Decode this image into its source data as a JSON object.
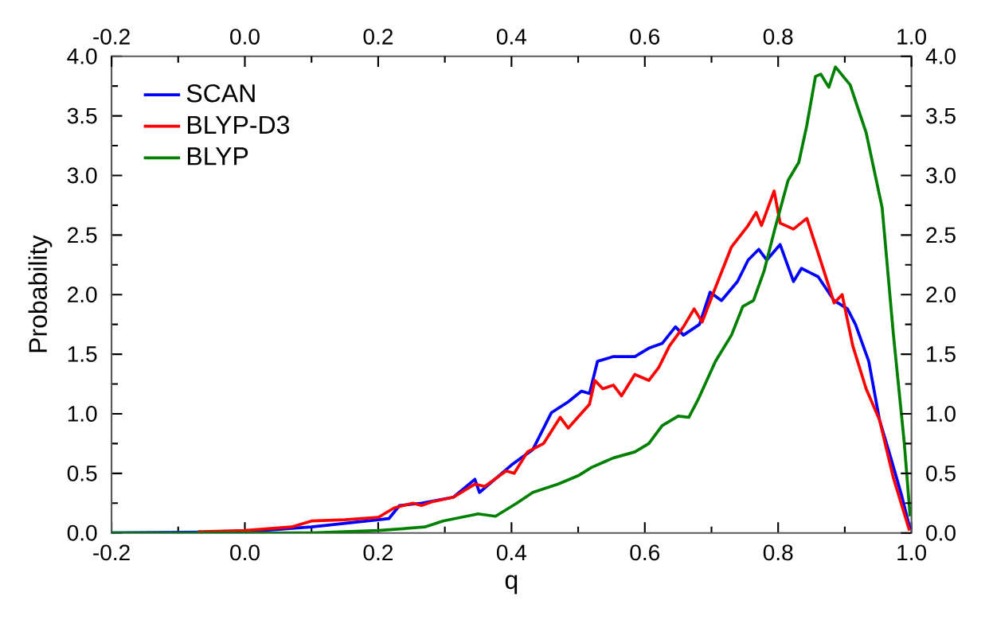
{
  "chart_data": {
    "type": "line",
    "xlabel": "q",
    "ylabel": "Probability",
    "legend": "top left",
    "line_style": "solid",
    "marker": "none",
    "xlim": [
      -0.2,
      1.0
    ],
    "ylim": [
      0,
      4.0
    ],
    "x2lim": [
      -0.2,
      1.0
    ],
    "y2lim": [
      0,
      4.0
    ],
    "xticks": [
      {
        "value": -0.2,
        "label": "-0.2"
      },
      {
        "value": 0,
        "label": "0.0"
      },
      {
        "value": 0.2,
        "label": "0.2"
      },
      {
        "value": 0.4,
        "label": "0.4"
      },
      {
        "value": 0.6,
        "label": "0.6"
      },
      {
        "value": 0.8,
        "label": "0.8"
      },
      {
        "value": 1.0,
        "label": "1.0"
      }
    ],
    "x2ticks": [
      {
        "value": -0.2,
        "label": "-0.2"
      },
      {
        "value": 0,
        "label": "0.0"
      },
      {
        "value": 0.2,
        "label": "0.2"
      },
      {
        "value": 0.4,
        "label": "0.4"
      },
      {
        "value": 0.6,
        "label": "0.6"
      },
      {
        "value": 0.8,
        "label": "0.8"
      },
      {
        "value": 1.0,
        "label": "1.0"
      }
    ],
    "yticks": [
      {
        "value": 0,
        "label": "0.0"
      },
      {
        "value": 0.5,
        "label": "0.5"
      },
      {
        "value": 1.0,
        "label": "1.0"
      },
      {
        "value": 1.5,
        "label": "1.5"
      },
      {
        "value": 2.0,
        "label": "2.0"
      },
      {
        "value": 2.5,
        "label": "2.5"
      },
      {
        "value": 3.0,
        "label": "3.0"
      },
      {
        "value": 3.5,
        "label": "3.5"
      },
      {
        "value": 4.0,
        "label": "4.0"
      }
    ],
    "y2ticks": [
      {
        "value": 0,
        "label": "0.0"
      },
      {
        "value": 0.5,
        "label": "0.5"
      },
      {
        "value": 1.0,
        "label": "1.0"
      },
      {
        "value": 1.5,
        "label": "1.5"
      },
      {
        "value": 2.0,
        "label": "2.0"
      },
      {
        "value": 2.5,
        "label": "2.5"
      },
      {
        "value": 3.0,
        "label": "3.0"
      },
      {
        "value": 3.5,
        "label": "3.5"
      },
      {
        "value": 4.0,
        "label": "4.0"
      }
    ],
    "series": [
      {
        "name": "SCAN",
        "color": "#0000ff",
        "x": [
          -0.2,
          0.0,
          0.1,
          0.2,
          0.216,
          0.232,
          0.265,
          0.313,
          0.345,
          0.352,
          0.4,
          0.432,
          0.46,
          0.485,
          0.505,
          0.517,
          0.529,
          0.553,
          0.585,
          0.606,
          0.626,
          0.646,
          0.658,
          0.682,
          0.698,
          0.715,
          0.739,
          0.755,
          0.771,
          0.783,
          0.803,
          0.823,
          0.835,
          0.86,
          0.884,
          0.904,
          0.916,
          0.936,
          0.952,
          0.969,
          0.985,
          0.998
        ],
        "values": [
          0,
          0.01,
          0.05,
          0.11,
          0.12,
          0.23,
          0.25,
          0.3,
          0.45,
          0.34,
          0.57,
          0.7,
          1.01,
          1.1,
          1.19,
          1.17,
          1.44,
          1.48,
          1.48,
          1.55,
          1.59,
          1.73,
          1.66,
          1.75,
          2.02,
          1.95,
          2.11,
          2.29,
          2.38,
          2.29,
          2.42,
          2.11,
          2.22,
          2.15,
          1.95,
          1.88,
          1.75,
          1.44,
          0.95,
          0.63,
          0.32,
          0.03
        ]
      },
      {
        "name": "BLYP-D3",
        "color": "#ff0000",
        "x": [
          -0.07,
          0.0,
          0.07,
          0.1,
          0.15,
          0.2,
          0.224,
          0.252,
          0.265,
          0.28,
          0.313,
          0.345,
          0.36,
          0.392,
          0.404,
          0.424,
          0.448,
          0.473,
          0.485,
          0.517,
          0.525,
          0.537,
          0.553,
          0.565,
          0.585,
          0.606,
          0.621,
          0.637,
          0.658,
          0.674,
          0.686,
          0.706,
          0.73,
          0.755,
          0.767,
          0.775,
          0.794,
          0.803,
          0.823,
          0.843,
          0.86,
          0.884,
          0.896,
          0.912,
          0.932,
          0.952,
          0.973,
          0.997
        ],
        "values": [
          0.01,
          0.02,
          0.05,
          0.1,
          0.11,
          0.13,
          0.21,
          0.25,
          0.23,
          0.26,
          0.3,
          0.41,
          0.39,
          0.52,
          0.5,
          0.68,
          0.75,
          0.97,
          0.88,
          1.08,
          1.28,
          1.21,
          1.24,
          1.15,
          1.33,
          1.28,
          1.39,
          1.57,
          1.73,
          1.88,
          1.77,
          2.06,
          2.4,
          2.58,
          2.69,
          2.58,
          2.87,
          2.6,
          2.55,
          2.64,
          2.35,
          1.93,
          2.0,
          1.57,
          1.21,
          0.95,
          0.46,
          0.02
        ]
      },
      {
        "name": "BLYP",
        "color": "#008000",
        "x": [
          -0.2,
          0.1,
          0.2,
          0.27,
          0.297,
          0.35,
          0.376,
          0.408,
          0.432,
          0.47,
          0.5,
          0.52,
          0.553,
          0.585,
          0.606,
          0.626,
          0.65,
          0.666,
          0.68,
          0.706,
          0.73,
          0.747,
          0.763,
          0.779,
          0.795,
          0.815,
          0.831,
          0.843,
          0.856,
          0.864,
          0.876,
          0.886,
          0.908,
          0.932,
          0.956,
          0.973,
          0.989,
          0.998
        ],
        "values": [
          0,
          0,
          0.02,
          0.05,
          0.1,
          0.16,
          0.14,
          0.25,
          0.34,
          0.41,
          0.48,
          0.55,
          0.63,
          0.68,
          0.75,
          0.9,
          0.98,
          0.97,
          1.12,
          1.44,
          1.66,
          1.9,
          1.95,
          2.2,
          2.55,
          2.96,
          3.11,
          3.42,
          3.83,
          3.85,
          3.74,
          3.91,
          3.76,
          3.36,
          2.73,
          1.66,
          0.77,
          0.14
        ]
      }
    ]
  }
}
